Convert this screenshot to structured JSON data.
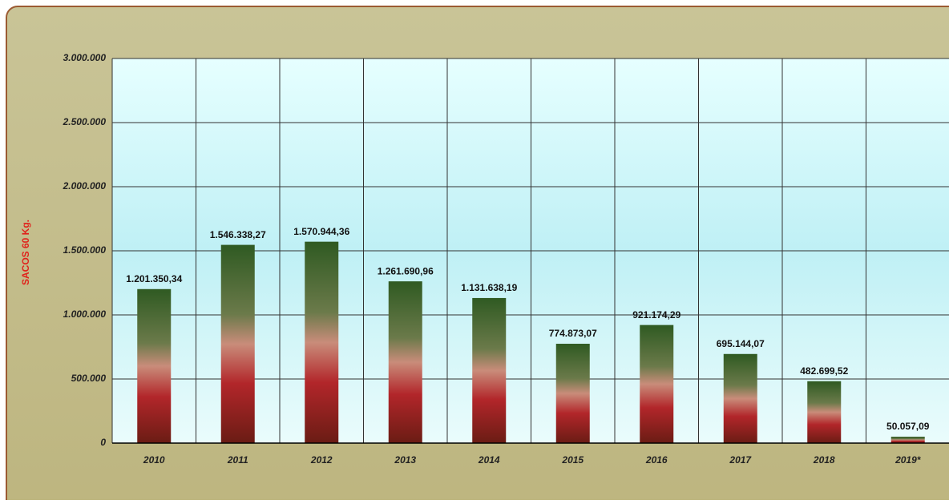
{
  "chart_data": {
    "type": "bar",
    "y_label": "SACOS 60 Kg.",
    "categories": [
      "2010",
      "2011",
      "2012",
      "2013",
      "2014",
      "2015",
      "2016",
      "2017",
      "2018",
      "2019*"
    ],
    "values": [
      1201350.34,
      1546338.27,
      1570944.36,
      1261690.96,
      1131638.19,
      774873.07,
      921174.29,
      695144.07,
      482699.52,
      50057.09
    ],
    "value_labels": [
      "1.201.350,34",
      "1.546.338,27",
      "1.570.944,36",
      "1.261.690,96",
      "1.131.638,19",
      "774.873,07",
      "921.174,29",
      "695.144,07",
      "482.699,52",
      "50.057,09"
    ],
    "ylim": [
      0,
      3000000
    ],
    "yticks": [
      0,
      {
        "value": 500000,
        "label": "500.000"
      },
      {
        "value": 1000000,
        "label": "1.000.000"
      },
      {
        "value": 1500000,
        "label": "1.500.000"
      },
      {
        "value": 2000000,
        "label": "2.000.000"
      },
      {
        "value": 2500000,
        "label": "2.500.000"
      },
      {
        "value": 3000000,
        "label": "3.000.000"
      }
    ],
    "grid": true
  }
}
